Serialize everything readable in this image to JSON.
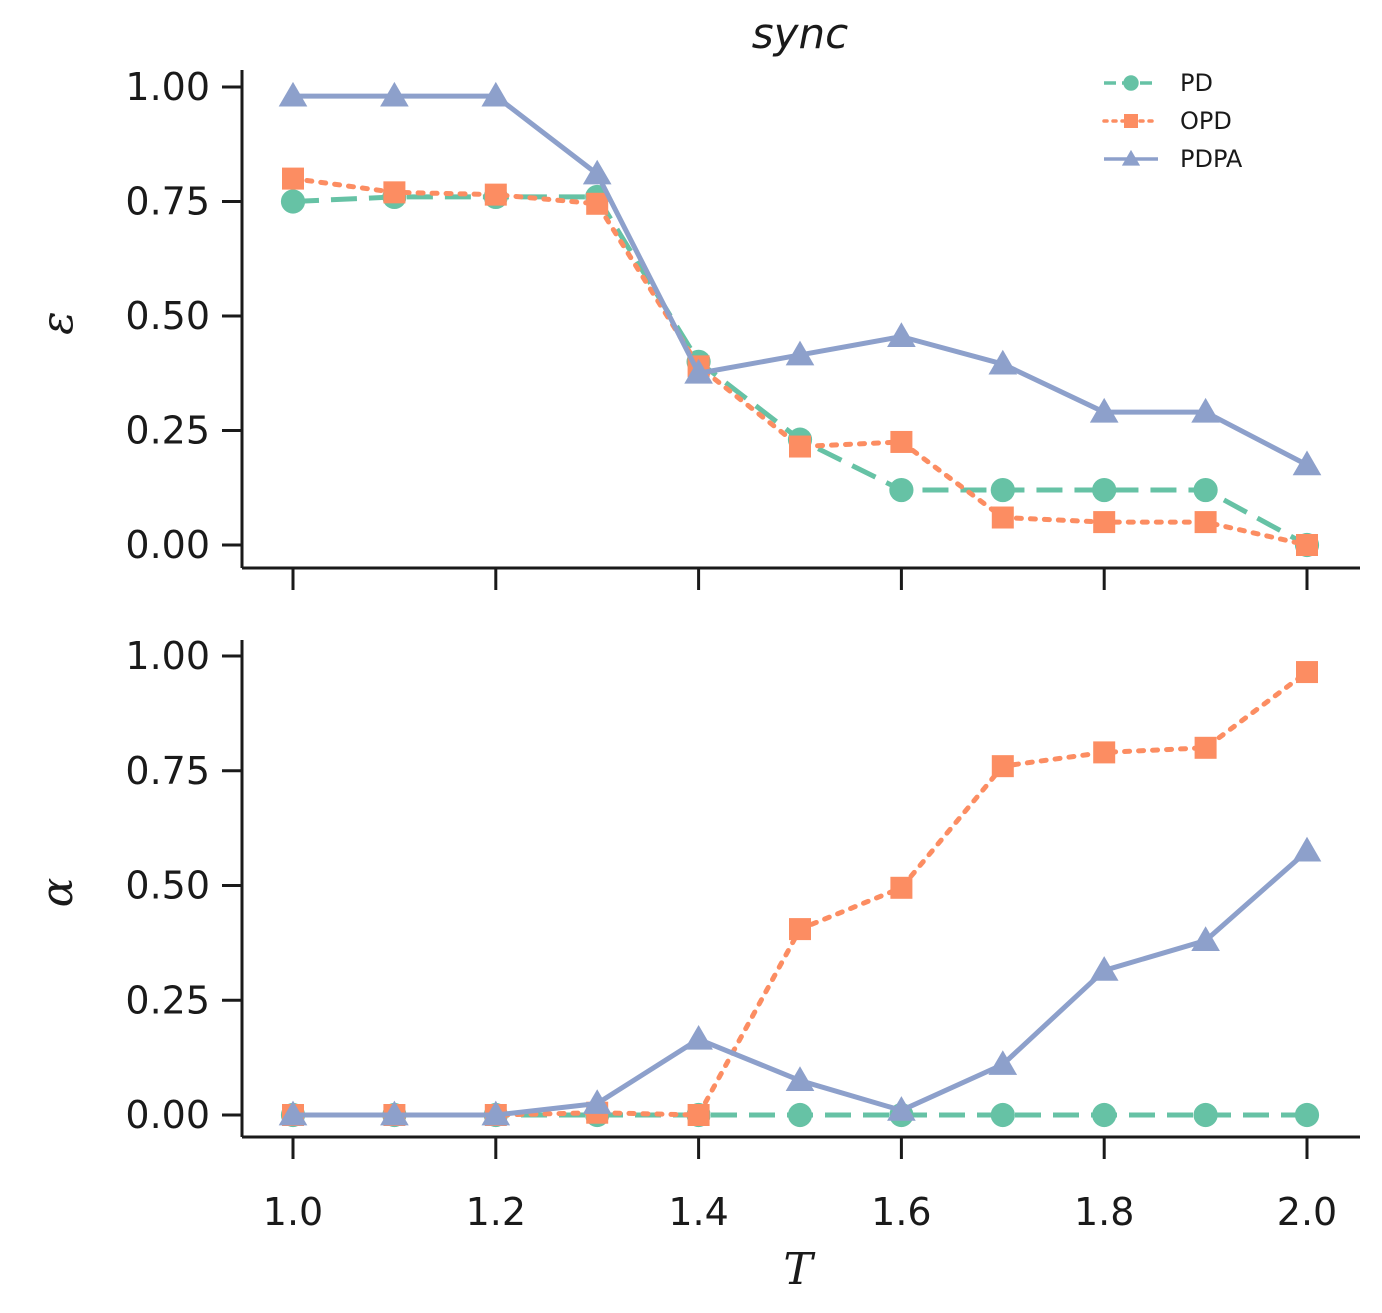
{
  "chart_data": {
    "type": "line",
    "title": "sync",
    "xlabel": "T",
    "x": [
      1.0,
      1.1,
      1.2,
      1.3,
      1.4,
      1.5,
      1.6,
      1.7,
      1.8,
      1.9,
      2.0
    ],
    "xticks": [
      "1.0",
      "1.2",
      "1.4",
      "1.6",
      "1.8",
      "2.0"
    ],
    "xlim": [
      0.95,
      2.05
    ],
    "legend": {
      "position": "top-right"
    },
    "grid": false,
    "colors": {
      "PD": "#66c2a5",
      "OPD": "#fc8d62",
      "PDPA": "#8da0cb"
    },
    "panels": [
      {
        "ylabel": "ε",
        "ylim": [
          -0.05,
          1.03
        ],
        "yticks": [
          "0.00",
          "0.25",
          "0.50",
          "0.75",
          "1.00"
        ],
        "series": [
          {
            "name": "PD",
            "values": [
              0.75,
              0.76,
              0.76,
              0.76,
              0.4,
              0.23,
              0.12,
              0.12,
              0.12,
              0.12,
              0.0
            ]
          },
          {
            "name": "OPD",
            "values": [
              0.8,
              0.77,
              0.765,
              0.745,
              0.39,
              0.215,
              0.225,
              0.06,
              0.05,
              0.05,
              0.0
            ]
          },
          {
            "name": "PDPA",
            "values": [
              0.98,
              0.98,
              0.98,
              0.81,
              0.375,
              0.415,
              0.455,
              0.395,
              0.29,
              0.29,
              0.175
            ]
          }
        ]
      },
      {
        "ylabel": "α",
        "ylim": [
          -0.05,
          1.03
        ],
        "yticks": [
          "0.00",
          "0.25",
          "0.50",
          "0.75",
          "1.00"
        ],
        "series": [
          {
            "name": "PD",
            "values": [
              0,
              0,
              0,
              0,
              0,
              0,
              0,
              0,
              0,
              0,
              0
            ]
          },
          {
            "name": "OPD",
            "values": [
              0,
              0,
              0,
              0.005,
              0,
              0.405,
              0.495,
              0.76,
              0.79,
              0.8,
              0.965
            ]
          },
          {
            "name": "PDPA",
            "values": [
              0,
              0,
              0,
              0.025,
              0.165,
              0.075,
              0.01,
              0.11,
              0.315,
              0.38,
              0.575
            ]
          }
        ]
      }
    ]
  }
}
